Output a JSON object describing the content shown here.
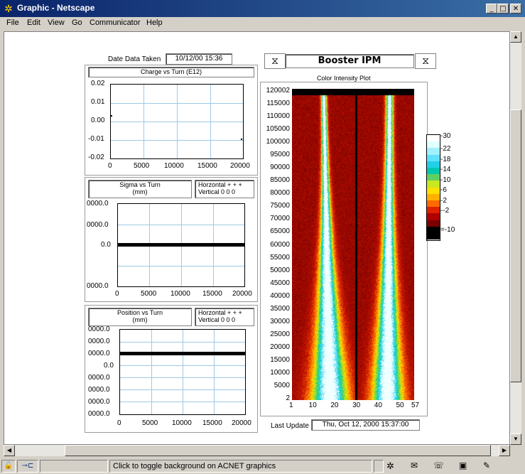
{
  "window": {
    "title": "Graphic - Netscape"
  },
  "menu": [
    "File",
    "Edit",
    "View",
    "Go",
    "Communicator",
    "Help"
  ],
  "date_taken": {
    "label": "Date  Data Taken",
    "value": "10/12/00 15:36"
  },
  "charge": {
    "title": "Charge vs Turn (E12)",
    "yticks": [
      "0.02",
      "0.01",
      "0.00",
      "-0.01",
      "-0.02"
    ],
    "xticks": [
      "0",
      "5000",
      "10000",
      "15000",
      "20000"
    ]
  },
  "sigma": {
    "title": "Sigma vs Turn",
    "units": "(mm)",
    "legend_h": "Horzontal  + + +",
    "legend_v": "Vertical    0 0 0",
    "yticks": [
      "0000.0",
      "0000.0",
      "0.0",
      "0000.0"
    ],
    "xticks": [
      "0",
      "5000",
      "10000",
      "15000",
      "20000"
    ]
  },
  "position": {
    "title": "Position vs Turn",
    "units": "(mm)",
    "legend_h": "Horzontal  + + +",
    "legend_v": "Vertical    0 0 0",
    "yticks": [
      "0000.0",
      "0000.0",
      "0000.0",
      "0.0",
      "0000.0",
      "0000.0",
      "0000.0",
      "0000.0"
    ],
    "xticks": [
      "0",
      "5000",
      "10000",
      "15000",
      "20000"
    ]
  },
  "ipm": {
    "title": "Booster IPM",
    "plot_title": "Color Intensity Plot",
    "yticks": [
      "120002",
      "115000",
      "110000",
      "105000",
      "100000",
      "95000",
      "90000",
      "85000",
      "80000",
      "75000",
      "70000",
      "65000",
      "60000",
      "55000",
      "50000",
      "45000",
      "40000",
      "35000",
      "30000",
      "25000",
      "20000",
      "15000",
      "10000",
      "5000",
      "2"
    ],
    "xticks": [
      "1",
      "10",
      "20",
      "30",
      "40",
      "50",
      "57"
    ]
  },
  "colorscale": {
    "labels": [
      "30",
      "22",
      "18",
      "14",
      "10",
      "6",
      "2",
      "-2",
      "=-10"
    ]
  },
  "last_update": {
    "label": "Last Update",
    "value": "Thu, Oct 12, 2000 15:37:00"
  },
  "status": {
    "text": "Click to toggle background on ACNET graphics"
  },
  "chart_data": [
    {
      "type": "scatter",
      "title": "Charge vs Turn (E12)",
      "ylim": [
        -0.02,
        0.02
      ],
      "xlim": [
        0,
        20000
      ],
      "x": [
        0,
        20000
      ],
      "y": [
        0.003,
        -0.01
      ]
    },
    {
      "type": "line",
      "title": "Sigma vs Turn",
      "xlim": [
        0,
        20000
      ],
      "x": [
        0,
        20000
      ],
      "y": [
        0,
        0
      ]
    },
    {
      "type": "line",
      "title": "Position vs Turn",
      "xlim": [
        0,
        20000
      ],
      "x": [
        0,
        20000
      ],
      "y": [
        0,
        0
      ]
    },
    {
      "type": "heatmap",
      "title": "Color Intensity Plot",
      "xlim": [
        1,
        57
      ],
      "ylim": [
        2,
        120002
      ]
    }
  ]
}
